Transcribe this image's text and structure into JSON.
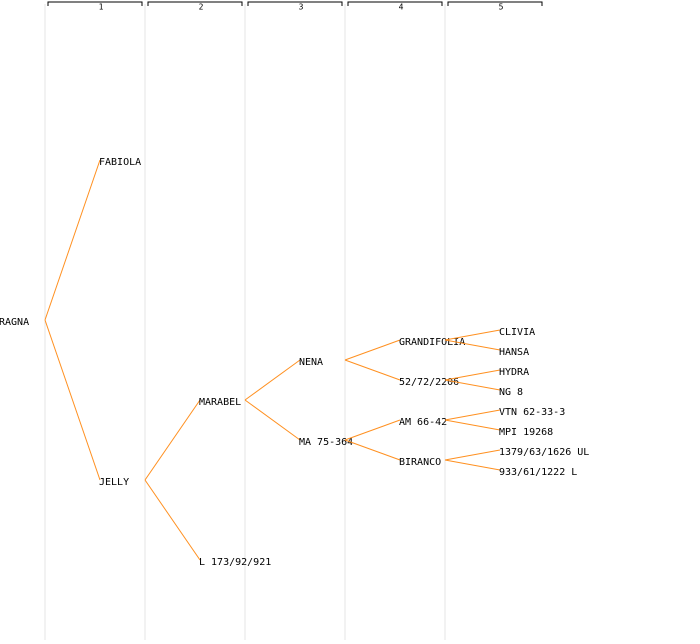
{
  "columns": [
    "1",
    "2",
    "3",
    "4",
    "5"
  ],
  "tree": {
    "label": "RAGNA",
    "parents": [
      {
        "label": "FABIOLA",
        "parents": []
      },
      {
        "label": "JELLY",
        "color": "#0000cc",
        "parents": [
          {
            "label": "MARABEL",
            "parents": [
              {
                "label": "NENA",
                "parents": [
                  {
                    "label": "GRANDIFOLIA",
                    "parents": [
                      {
                        "label": "CLIVIA",
                        "parents": []
                      },
                      {
                        "label": "HANSA",
                        "parents": []
                      }
                    ]
                  },
                  {
                    "label": "52/72/2206",
                    "parents": [
                      {
                        "label": "HYDRA",
                        "parents": []
                      },
                      {
                        "label": "NG 8",
                        "parents": []
                      }
                    ]
                  }
                ]
              },
              {
                "label": "MA 75-364",
                "parents": [
                  {
                    "label": "AM 66-42",
                    "parents": [
                      {
                        "label": "VTN 62-33-3",
                        "parents": []
                      },
                      {
                        "label": "MPI 19268",
                        "parents": []
                      }
                    ]
                  },
                  {
                    "label": "BIRANCO",
                    "parents": [
                      {
                        "label": "1379/63/1626 UL",
                        "parents": []
                      },
                      {
                        "label": "933/61/1222 L",
                        "parents": []
                      }
                    ]
                  }
                ]
              }
            ]
          },
          {
            "label": "L 173/92/921",
            "parents": []
          }
        ]
      }
    ]
  }
}
